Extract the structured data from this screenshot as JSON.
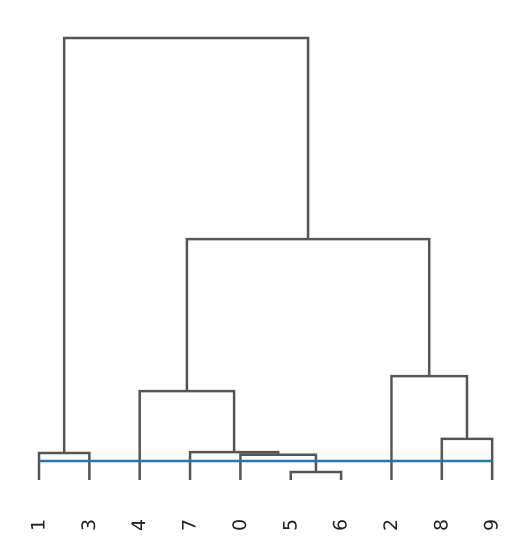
{
  "chart_data": {
    "type": "dendrogram",
    "leaves": [
      "1",
      "3",
      "4",
      "7",
      "0",
      "5",
      "6",
      "2",
      "8",
      "9"
    ],
    "merges": [
      {
        "children": [
          0,
          1
        ],
        "height": 0.61
      },
      {
        "children": [
          5,
          6
        ],
        "height": 0.18
      },
      {
        "children": [
          4,
          11
        ],
        "height": 0.57
      },
      {
        "children": [
          3,
          12
        ],
        "height": 0.63
      },
      {
        "children": [
          2,
          13
        ],
        "height": 2.01
      },
      {
        "children": [
          8,
          9
        ],
        "height": 0.93
      },
      {
        "children": [
          7,
          15
        ],
        "height": 2.35
      },
      {
        "children": [
          14,
          16
        ],
        "height": 5.45
      },
      {
        "children": [
          10,
          17
        ],
        "height": 10
      }
    ],
    "ylim": [
      0,
      10
    ],
    "cut_height": 0.43,
    "color": "#555555",
    "cut_color": "#1f77b4"
  }
}
